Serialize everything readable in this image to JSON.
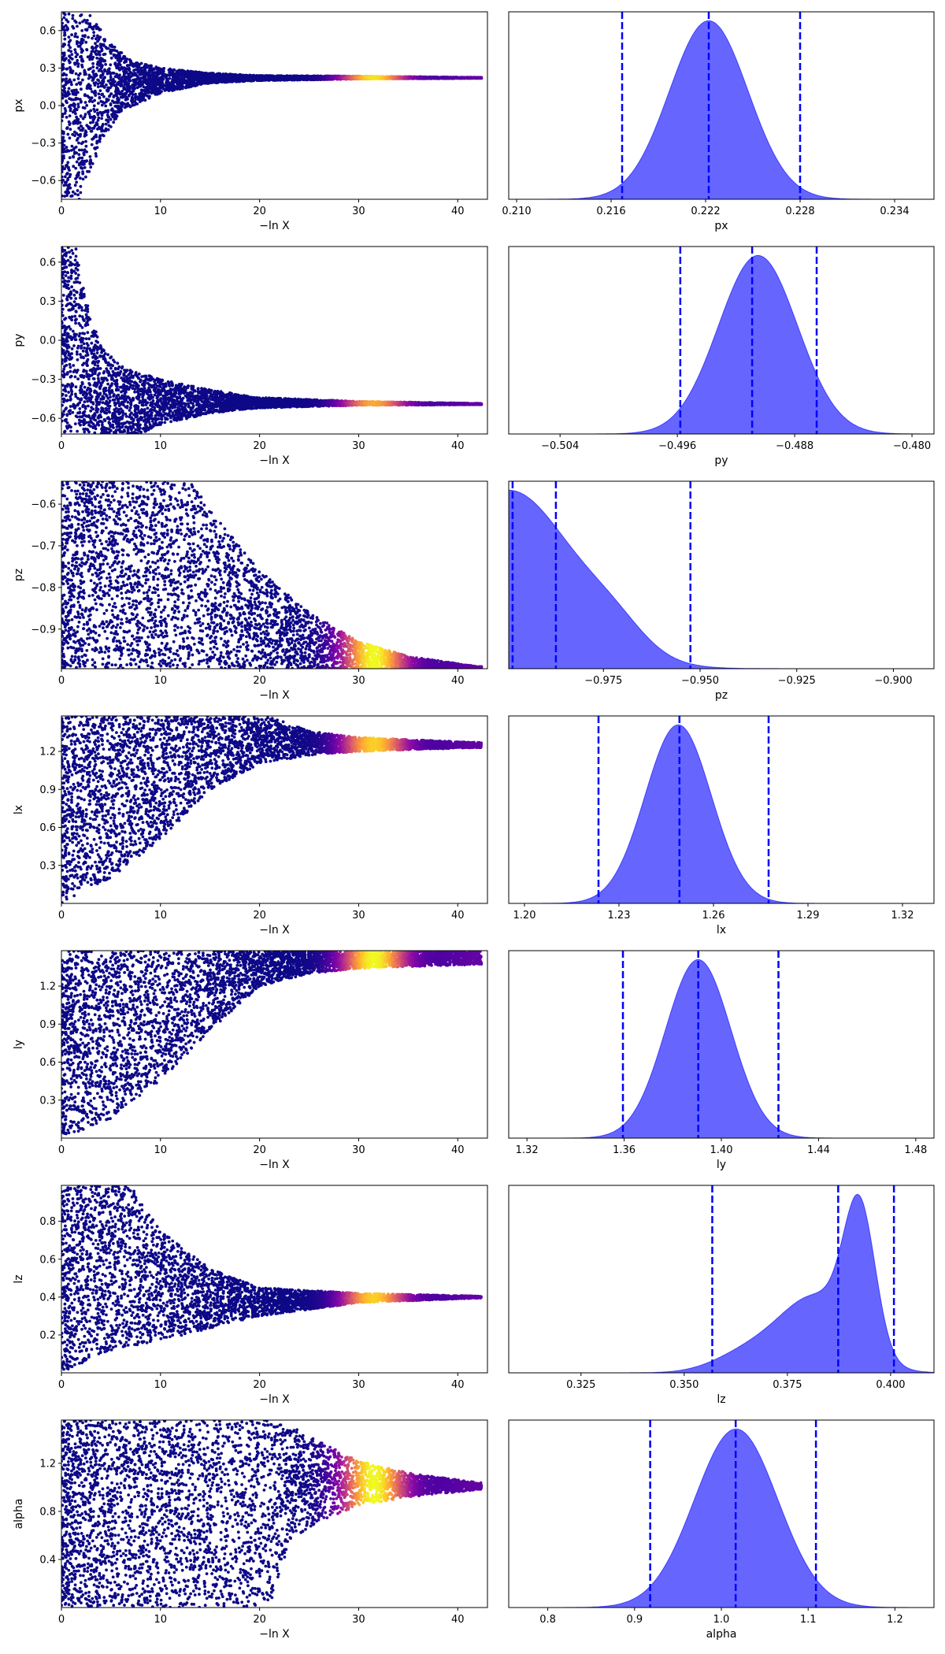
{
  "chart_data": [
    {
      "type": "scatter",
      "panel": "trace",
      "parameter": "px",
      "xlabel": "−ln X",
      "ylabel": "px",
      "xlim": [
        0,
        43
      ],
      "ylim": [
        -0.75,
        0.75
      ],
      "xticks": [
        0,
        10,
        20,
        30,
        40
      ],
      "yticks": [
        -0.6,
        -0.3,
        0.0,
        0.3,
        0.6
      ],
      "ytick_labels": [
        "−0.6",
        "−0.3",
        "0.0",
        "0.3",
        "0.6"
      ],
      "converge_value": 0.222,
      "converge_x": 20,
      "colormap": "plasma",
      "bright_center": 31.5,
      "bright_strength": 0.95,
      "series": [
        {
          "envelope_top": [
            [
              0.0,
              0.75
            ],
            [
              3,
              0.72
            ],
            [
              5,
              0.5
            ],
            [
              7,
              0.36
            ],
            [
              10,
              0.3
            ],
            [
              15,
              0.26
            ],
            [
              20,
              0.24
            ],
            [
              30,
              0.235
            ],
            [
              42,
              0.225
            ]
          ],
          "envelope_bottom": [
            [
              0.0,
              -0.75
            ],
            [
              1.8,
              -0.75
            ],
            [
              3,
              -0.55
            ],
            [
              4,
              -0.3
            ],
            [
              6,
              -0.05
            ],
            [
              10,
              0.1
            ],
            [
              15,
              0.18
            ],
            [
              20,
              0.2
            ],
            [
              30,
              0.212
            ],
            [
              42,
              0.218
            ]
          ]
        }
      ]
    },
    {
      "type": "area",
      "panel": "posterior",
      "parameter": "px",
      "xlabel": "px",
      "xlim": [
        0.2095,
        0.2365
      ],
      "xticks": [
        0.21,
        0.216,
        0.222,
        0.228,
        0.234
      ],
      "xtick_labels": [
        "0.210",
        "0.216",
        "0.222",
        "0.228",
        "0.234"
      ],
      "quantiles": [
        0.2167,
        0.2222,
        0.228
      ],
      "peaks": [
        {
          "mu": 0.2222,
          "sigma": 0.0025,
          "amp": 1.0
        }
      ],
      "color": "#0000ff",
      "line_style": "dashed"
    },
    {
      "type": "scatter",
      "panel": "trace",
      "parameter": "py",
      "xlabel": "−ln X",
      "ylabel": "py",
      "xlim": [
        0,
        43
      ],
      "ylim": [
        -0.72,
        0.72
      ],
      "xticks": [
        0,
        10,
        20,
        30,
        40
      ],
      "yticks": [
        -0.6,
        -0.3,
        0.0,
        0.3,
        0.6
      ],
      "ytick_labels": [
        "−0.6",
        "−0.3",
        "0.0",
        "0.3",
        "0.6"
      ],
      "converge_value": -0.49,
      "converge_x": 22,
      "colormap": "plasma",
      "bright_center": 31.5,
      "bright_strength": 0.8,
      "series": [
        {
          "envelope_top": [
            [
              0.0,
              0.72
            ],
            [
              1.5,
              0.72
            ],
            [
              2.5,
              0.3
            ],
            [
              4,
              -0.05
            ],
            [
              6,
              -0.2
            ],
            [
              10,
              -0.3
            ],
            [
              15,
              -0.38
            ],
            [
              20,
              -0.44
            ],
            [
              30,
              -0.47
            ],
            [
              42,
              -0.485
            ]
          ],
          "envelope_bottom": [
            [
              0.0,
              -0.72
            ],
            [
              8,
              -0.72
            ],
            [
              10,
              -0.65
            ],
            [
              15,
              -0.56
            ],
            [
              20,
              -0.52
            ],
            [
              30,
              -0.5
            ],
            [
              42,
              -0.495
            ]
          ]
        }
      ]
    },
    {
      "type": "area",
      "panel": "posterior",
      "parameter": "py",
      "xlabel": "py",
      "xlim": [
        -0.5075,
        -0.4785
      ],
      "xticks": [
        -0.504,
        -0.496,
        -0.488,
        -0.48
      ],
      "xtick_labels": [
        "−0.504",
        "−0.496",
        "−0.488",
        "−0.480"
      ],
      "quantiles": [
        -0.4958,
        -0.4909,
        -0.4865
      ],
      "peaks": [
        {
          "mu": -0.4905,
          "sigma": 0.0027,
          "amp": 1.0
        }
      ],
      "color": "#0000ff",
      "line_style": "dashed"
    },
    {
      "type": "scatter",
      "panel": "trace",
      "parameter": "pz",
      "xlabel": "−ln X",
      "ylabel": "pz",
      "xlim": [
        0,
        43
      ],
      "ylim": [
        -0.995,
        -0.545
      ],
      "xticks": [
        0,
        10,
        20,
        30,
        40
      ],
      "yticks": [
        -0.9,
        -0.8,
        -0.7,
        -0.6
      ],
      "ytick_labels": [
        "−0.9",
        "−0.8",
        "−0.7",
        "−0.6"
      ],
      "converge_value": -0.995,
      "converge_x": 40,
      "colormap": "plasma",
      "bright_center": 31.5,
      "bright_strength": 1.0,
      "series": [
        {
          "envelope_top": [
            [
              0.0,
              -0.545
            ],
            [
              13,
              -0.545
            ],
            [
              16,
              -0.64
            ],
            [
              20,
              -0.76
            ],
            [
              25,
              -0.86
            ],
            [
              30,
              -0.93
            ],
            [
              35,
              -0.965
            ],
            [
              42,
              -0.99
            ]
          ],
          "envelope_bottom": [
            [
              0.0,
              -0.995
            ],
            [
              42,
              -0.995
            ]
          ]
        }
      ]
    },
    {
      "type": "area",
      "panel": "posterior",
      "parameter": "pz",
      "xlabel": "pz",
      "xlim": [
        -0.9995,
        -0.8895
      ],
      "xticks": [
        -0.975,
        -0.95,
        -0.925,
        -0.9
      ],
      "xtick_labels": [
        "−0.975",
        "−0.950",
        "−0.925",
        "−0.900"
      ],
      "quantiles": [
        -0.9985,
        -0.9873,
        -0.9525
      ],
      "peaks": [
        {
          "mu": -0.9995,
          "sigma": 0.017,
          "amp": 1.0
        },
        {
          "mu": -0.972,
          "sigma": 0.008,
          "amp": 0.12
        }
      ],
      "color": "#0000ff",
      "line_style": "dashed"
    },
    {
      "type": "scatter",
      "panel": "trace",
      "parameter": "lx",
      "xlabel": "−ln X",
      "ylabel": "lx",
      "xlim": [
        0,
        43
      ],
      "ylim": [
        0.0,
        1.48
      ],
      "xticks": [
        0,
        10,
        20,
        30,
        40
      ],
      "yticks": [
        0.3,
        0.6,
        0.9,
        1.2
      ],
      "ytick_labels": [
        "0.3",
        "0.6",
        "0.9",
        "1.2"
      ],
      "converge_value": 1.25,
      "converge_x": 24,
      "colormap": "plasma",
      "bright_center": 31.5,
      "bright_strength": 0.9,
      "series": [
        {
          "envelope_top": [
            [
              0.0,
              1.48
            ],
            [
              21,
              1.48
            ],
            [
              25,
              1.36
            ],
            [
              30,
              1.31
            ],
            [
              42,
              1.27
            ]
          ],
          "envelope_bottom": [
            [
              0.0,
              0.0
            ],
            [
              5,
              0.2
            ],
            [
              10,
              0.5
            ],
            [
              15,
              0.9
            ],
            [
              20,
              1.1
            ],
            [
              25,
              1.17
            ],
            [
              30,
              1.2
            ],
            [
              42,
              1.23
            ]
          ]
        }
      ]
    },
    {
      "type": "area",
      "panel": "posterior",
      "parameter": "lx",
      "xlabel": "lx",
      "xlim": [
        1.195,
        1.33
      ],
      "xticks": [
        1.2,
        1.23,
        1.26,
        1.29,
        1.32
      ],
      "xtick_labels": [
        "1.20",
        "1.23",
        "1.26",
        "1.29",
        "1.32"
      ],
      "quantiles": [
        1.2235,
        1.2492,
        1.2775
      ],
      "peaks": [
        {
          "mu": 1.2488,
          "sigma": 0.0105,
          "amp": 1.0
        }
      ],
      "color": "#0000ff",
      "line_style": "dashed"
    },
    {
      "type": "scatter",
      "panel": "trace",
      "parameter": "ly",
      "xlabel": "−ln X",
      "ylabel": "ly",
      "xlim": [
        0,
        43
      ],
      "ylim": [
        0.0,
        1.48
      ],
      "xticks": [
        0,
        10,
        20,
        30,
        40
      ],
      "yticks": [
        0.3,
        0.6,
        0.9,
        1.2
      ],
      "ytick_labels": [
        "0.3",
        "0.6",
        "0.9",
        "1.2"
      ],
      "converge_value": 1.39,
      "converge_x": 25,
      "colormap": "plasma",
      "bright_center": 31.5,
      "bright_strength": 1.0,
      "series": [
        {
          "envelope_top": [
            [
              0.0,
              1.48
            ],
            [
              42,
              1.48
            ]
          ],
          "envelope_bottom": [
            [
              0.0,
              0.0
            ],
            [
              5,
              0.15
            ],
            [
              10,
              0.45
            ],
            [
              15,
              0.85
            ],
            [
              20,
              1.2
            ],
            [
              25,
              1.3
            ],
            [
              30,
              1.34
            ],
            [
              42,
              1.37
            ]
          ]
        }
      ]
    },
    {
      "type": "area",
      "panel": "posterior",
      "parameter": "ly",
      "xlabel": "ly",
      "xlim": [
        1.3125,
        1.4875
      ],
      "xticks": [
        1.32,
        1.36,
        1.4,
        1.44,
        1.48
      ],
      "xtick_labels": [
        "1.32",
        "1.36",
        "1.40",
        "1.44",
        "1.48"
      ],
      "quantiles": [
        1.3595,
        1.3905,
        1.4235
      ],
      "peaks": [
        {
          "mu": 1.3905,
          "sigma": 0.0135,
          "amp": 1.0
        }
      ],
      "color": "#0000ff",
      "line_style": "dashed"
    },
    {
      "type": "scatter",
      "panel": "trace",
      "parameter": "lz",
      "xlabel": "−ln X",
      "ylabel": "lz",
      "xlim": [
        0,
        43
      ],
      "ylim": [
        0.0,
        0.99
      ],
      "xticks": [
        0,
        10,
        20,
        30,
        40
      ],
      "yticks": [
        0.2,
        0.4,
        0.6,
        0.8
      ],
      "ytick_labels": [
        "0.2",
        "0.4",
        "0.6",
        "0.8"
      ],
      "converge_value": 0.4,
      "converge_x": 22,
      "colormap": "plasma",
      "bright_center": 31.5,
      "bright_strength": 0.9,
      "series": [
        {
          "envelope_top": [
            [
              0.0,
              0.99
            ],
            [
              7,
              0.99
            ],
            [
              10,
              0.75
            ],
            [
              15,
              0.55
            ],
            [
              20,
              0.45
            ],
            [
              30,
              0.42
            ],
            [
              42,
              0.405
            ]
          ],
          "envelope_bottom": [
            [
              0.0,
              0.0
            ],
            [
              2,
              0.05
            ],
            [
              5,
              0.12
            ],
            [
              10,
              0.17
            ],
            [
              20,
              0.3
            ],
            [
              30,
              0.37
            ],
            [
              42,
              0.395
            ]
          ]
        }
      ]
    },
    {
      "type": "area",
      "panel": "posterior",
      "parameter": "lz",
      "xlabel": "lz",
      "xlim": [
        0.3075,
        0.4105
      ],
      "xticks": [
        0.325,
        0.35,
        0.375,
        0.4
      ],
      "xtick_labels": [
        "0.325",
        "0.350",
        "0.375",
        "0.400"
      ],
      "quantiles": [
        0.3568,
        0.3873,
        0.4008
      ],
      "peaks": [
        {
          "mu": 0.3925,
          "sigma": 0.0038,
          "amp": 0.78
        },
        {
          "mu": 0.382,
          "sigma": 0.009,
          "amp": 0.42
        },
        {
          "mu": 0.365,
          "sigma": 0.008,
          "amp": 0.1
        }
      ],
      "color": "#0000ff",
      "line_style": "dashed"
    },
    {
      "type": "scatter",
      "panel": "trace",
      "parameter": "alpha",
      "xlabel": "−ln X",
      "ylabel": "alpha",
      "xlim": [
        0,
        43
      ],
      "ylim": [
        0.0,
        1.56
      ],
      "xticks": [
        0,
        10,
        20,
        30,
        40
      ],
      "yticks": [
        0.4,
        0.8,
        1.2
      ],
      "ytick_labels": [
        "0.4",
        "0.8",
        "1.2"
      ],
      "converge_value": 1.0,
      "converge_x": 22,
      "colormap": "plasma",
      "bright_center": 31.5,
      "bright_strength": 1.0,
      "series": [
        {
          "envelope_top": [
            [
              0.0,
              1.56
            ],
            [
              22,
              1.56
            ],
            [
              26,
              1.38
            ],
            [
              30,
              1.22
            ],
            [
              35,
              1.12
            ],
            [
              42,
              1.04
            ]
          ],
          "envelope_bottom": [
            [
              0.0,
              0.0
            ],
            [
              21,
              0.0
            ],
            [
              23,
              0.55
            ],
            [
              26,
              0.72
            ],
            [
              30,
              0.85
            ],
            [
              35,
              0.92
            ],
            [
              42,
              0.98
            ]
          ]
        }
      ]
    },
    {
      "type": "area",
      "panel": "posterior",
      "parameter": "alpha",
      "xlabel": "alpha",
      "xlim": [
        0.755,
        1.245
      ],
      "xticks": [
        0.8,
        0.9,
        1.0,
        1.1,
        1.2
      ],
      "xtick_labels": [
        "0.8",
        "0.9",
        "1.0",
        "1.1",
        "1.2"
      ],
      "quantiles": [
        0.918,
        1.0165,
        1.109
      ],
      "peaks": [
        {
          "mu": 1.017,
          "sigma": 0.048,
          "amp": 1.0
        }
      ],
      "color": "#0000ff",
      "line_style": "dashed"
    }
  ]
}
